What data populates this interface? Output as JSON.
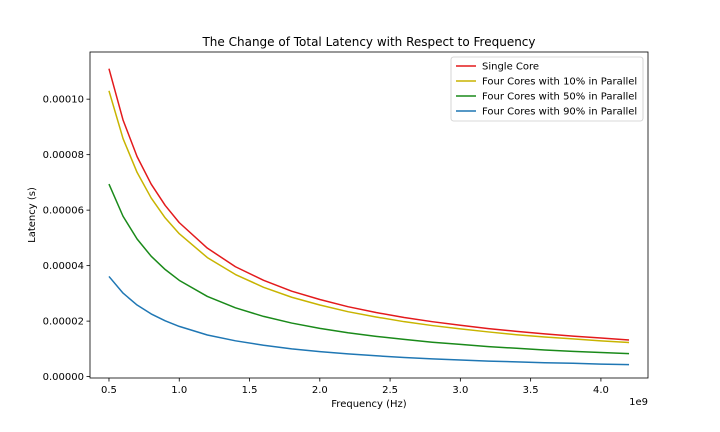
{
  "chart_data": {
    "type": "line",
    "title": "The Change of Total Latency with Respect to Frequency",
    "xlabel": "Frequency (Hz)",
    "ylabel": "Latency (s)",
    "x_offset_label": "1e9",
    "xlim": [
      0.365,
      4.335
    ],
    "ylim": [
      -5e-07,
      0.000117
    ],
    "x_ticks": [
      0.5,
      1.0,
      1.5,
      2.0,
      2.5,
      3.0,
      3.5,
      4.0
    ],
    "x_tick_labels": [
      "0.5",
      "1.0",
      "1.5",
      "2.0",
      "2.5",
      "3.0",
      "3.5",
      "4.0"
    ],
    "y_ticks": [
      0,
      2e-05,
      4e-05,
      6e-05,
      8e-05,
      0.0001
    ],
    "y_tick_labels": [
      "0.00000",
      "0.00002",
      "0.00004",
      "0.00006",
      "0.00008",
      "0.00010"
    ],
    "grid": false,
    "legend_position": "top-right",
    "x": [
      0.5,
      0.6,
      0.7,
      0.8,
      0.9,
      1.0,
      1.2,
      1.4,
      1.6,
      1.8,
      2.0,
      2.2,
      2.4,
      2.6,
      2.8,
      3.0,
      3.2,
      3.4,
      3.6,
      3.8,
      4.0,
      4.2
    ],
    "series": [
      {
        "name": "Single Core",
        "color": "#e31a1c",
        "values": [
          0.000111,
          9.25e-05,
          7.93e-05,
          6.94e-05,
          6.17e-05,
          5.55e-05,
          4.63e-05,
          3.96e-05,
          3.47e-05,
          3.08e-05,
          2.78e-05,
          2.52e-05,
          2.31e-05,
          2.13e-05,
          1.98e-05,
          1.85e-05,
          1.73e-05,
          1.63e-05,
          1.54e-05,
          1.46e-05,
          1.39e-05,
          1.32e-05
        ]
      },
      {
        "name": "Four Cores with 10% in Parallel",
        "color": "#c8b400",
        "values": [
          0.000103,
          8.58e-05,
          7.36e-05,
          6.44e-05,
          5.72e-05,
          5.15e-05,
          4.29e-05,
          3.68e-05,
          3.22e-05,
          2.86e-05,
          2.58e-05,
          2.34e-05,
          2.15e-05,
          1.98e-05,
          1.84e-05,
          1.72e-05,
          1.61e-05,
          1.51e-05,
          1.43e-05,
          1.36e-05,
          1.29e-05,
          1.23e-05
        ]
      },
      {
        "name": "Four Cores with 50% in Parallel",
        "color": "#1a8a1a",
        "values": [
          6.94e-05,
          5.78e-05,
          4.96e-05,
          4.34e-05,
          3.86e-05,
          3.47e-05,
          2.89e-05,
          2.48e-05,
          2.17e-05,
          1.93e-05,
          1.74e-05,
          1.58e-05,
          1.45e-05,
          1.34e-05,
          1.24e-05,
          1.16e-05,
          1.08e-05,
          1.02e-05,
          9.6e-06,
          9.1e-06,
          8.7e-06,
          8.3e-06
        ]
      },
      {
        "name": "Four Cores with 90% in Parallel",
        "color": "#1f77b4",
        "values": [
          3.61e-05,
          3.01e-05,
          2.58e-05,
          2.26e-05,
          2.01e-05,
          1.81e-05,
          1.5e-05,
          1.29e-05,
          1.13e-05,
          1e-05,
          9e-06,
          8.2e-06,
          7.5e-06,
          6.9e-06,
          6.4e-06,
          6e-06,
          5.6e-06,
          5.3e-06,
          5e-06,
          4.8e-06,
          4.5e-06,
          4.3e-06
        ]
      }
    ]
  }
}
